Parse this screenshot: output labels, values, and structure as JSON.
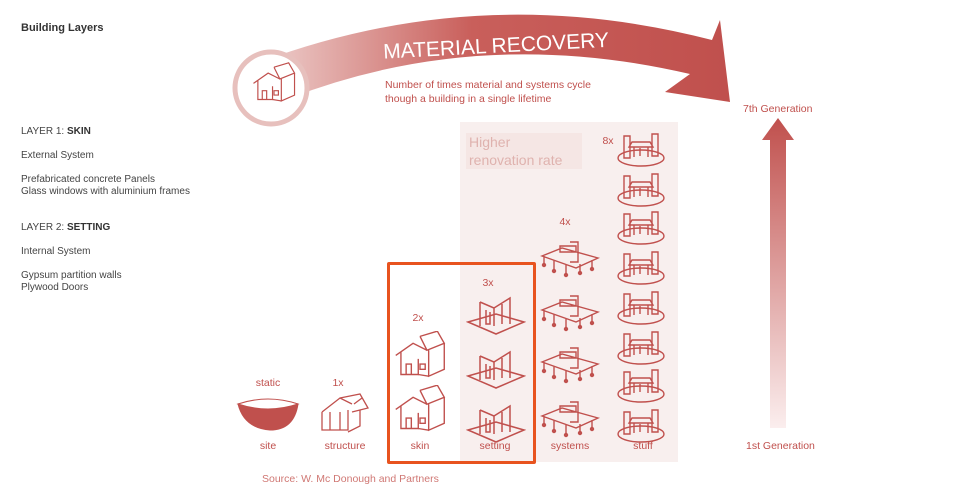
{
  "sidebar": {
    "title": "Building Layers",
    "layer1": {
      "prefix": "LAYER 1: ",
      "name": "SKIN",
      "system": "External System",
      "materials": [
        "Prefabricated concrete Panels",
        "Glass windows with aluminium frames"
      ]
    },
    "layer2": {
      "prefix": "LAYER 2: ",
      "name": "SETTING",
      "system": "Internal System",
      "materials": [
        "Gypsum partition walls",
        "Plywood Doors"
      ]
    }
  },
  "diagram": {
    "arrow_title": "MATERIAL RECOVERY",
    "subtitle": [
      "Number of times material and systems cycle",
      "though a building in a single lifetime"
    ],
    "panel_label": [
      "Higher",
      "renovation rate"
    ],
    "columns": [
      {
        "label": "site",
        "count": "static",
        "icons": 1
      },
      {
        "label": "structure",
        "count": "1x",
        "icons": 1
      },
      {
        "label": "skin",
        "count": "2x",
        "icons": 2
      },
      {
        "label": "setting",
        "count": "3x",
        "icons": 3
      },
      {
        "label": "systems",
        "count": "4x",
        "icons": 4
      },
      {
        "label": "stuff",
        "count": "8x",
        "icons": 8
      }
    ],
    "generation_top": "7th Generation",
    "generation_bottom": "1st Generation",
    "source": "Source: W. Mc Donough and Partners",
    "highlighted_columns": [
      "skin",
      "setting"
    ],
    "colors": {
      "accent": "#c0504d",
      "panel": "#f8efee",
      "highlight": "#e8531f"
    }
  }
}
